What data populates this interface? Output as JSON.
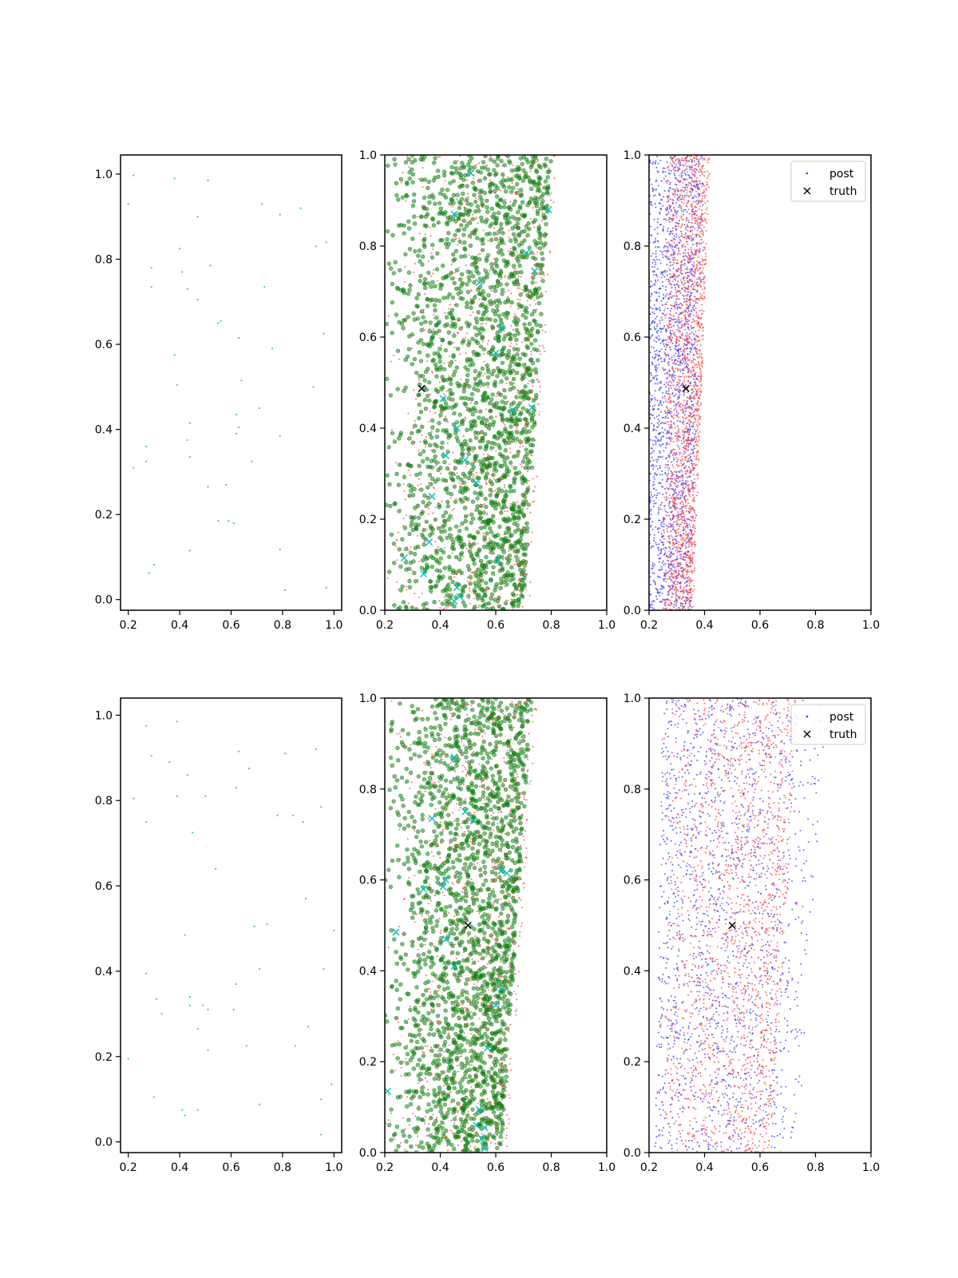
{
  "figure": {
    "background": "#ffffff"
  },
  "colors": {
    "cyan_dot": "#3cc8b0",
    "cyan_x": "#00bfbf",
    "green": "#118811",
    "green_edge": "#0a6a0a",
    "red": "#ff3333",
    "blue": "#3333ff",
    "truth": "#000000"
  },
  "legend": {
    "post": "post",
    "truth": "truth"
  },
  "chart_data": [
    {
      "id": "top-left",
      "type": "scatter",
      "title": "",
      "xlabel": "",
      "ylabel": "",
      "xlim": [
        0.17,
        1.03
      ],
      "ylim": [
        -0.025,
        1.045
      ],
      "xticks": [
        0.2,
        0.4,
        0.6,
        0.8,
        1.0
      ],
      "yticks": [
        0.0,
        0.2,
        0.4,
        0.6,
        0.8,
        1.0
      ],
      "xticklabels": [
        "0.2",
        "0.4",
        "0.6",
        "0.8",
        "1.0"
      ],
      "yticklabels": [
        "0.0",
        "0.2",
        "0.4",
        "0.6",
        "0.8",
        "1.0"
      ],
      "series": [
        {
          "kind": "dots",
          "color_key": "cyan_dot",
          "points": [
            [
              0.22,
              0.997
            ],
            [
              0.38,
              0.99
            ],
            [
              0.51,
              0.985
            ],
            [
              0.2,
              0.93
            ],
            [
              0.72,
              0.93
            ],
            [
              0.47,
              0.9
            ],
            [
              0.79,
              0.905
            ],
            [
              0.87,
              0.92
            ],
            [
              0.4,
              0.825
            ],
            [
              0.93,
              0.83
            ],
            [
              0.97,
              0.84
            ],
            [
              0.29,
              0.78
            ],
            [
              0.41,
              0.77
            ],
            [
              0.52,
              0.785
            ],
            [
              0.29,
              0.735
            ],
            [
              0.43,
              0.73
            ],
            [
              0.73,
              0.735
            ],
            [
              0.47,
              0.705
            ],
            [
              0.55,
              0.65
            ],
            [
              0.56,
              0.655
            ],
            [
              0.96,
              0.625
            ],
            [
              0.63,
              0.615
            ],
            [
              0.38,
              0.575
            ],
            [
              0.76,
              0.59
            ],
            [
              0.39,
              0.505
            ],
            [
              0.64,
              0.515
            ],
            [
              0.92,
              0.5
            ],
            [
              0.71,
              0.45
            ],
            [
              0.62,
              0.435
            ],
            [
              0.44,
              0.415
            ],
            [
              0.63,
              0.405
            ],
            [
              0.62,
              0.39
            ],
            [
              0.79,
              0.385
            ],
            [
              0.43,
              0.375
            ],
            [
              0.27,
              0.36
            ],
            [
              0.44,
              0.335
            ],
            [
              0.27,
              0.325
            ],
            [
              0.68,
              0.325
            ],
            [
              0.22,
              0.31
            ],
            [
              0.58,
              0.27
            ],
            [
              0.51,
              0.265
            ],
            [
              0.55,
              0.185
            ],
            [
              0.59,
              0.185
            ],
            [
              0.61,
              0.18
            ],
            [
              0.44,
              0.115
            ],
            [
              0.79,
              0.118
            ],
            [
              0.3,
              0.082
            ],
            [
              0.28,
              0.062
            ],
            [
              0.81,
              0.022
            ],
            [
              0.97,
              0.028
            ]
          ]
        }
      ]
    },
    {
      "id": "top-middle",
      "type": "scatter",
      "title": "",
      "xlabel": "",
      "ylabel": "",
      "xlim": [
        0.2,
        1.0
      ],
      "ylim": [
        0.0,
        1.0
      ],
      "xticks": [
        0.2,
        0.4,
        0.6,
        0.8,
        1.0
      ],
      "yticks": [
        0.0,
        0.2,
        0.4,
        0.6,
        0.8,
        1.0
      ],
      "xticklabels": [
        "0.2",
        "0.4",
        "0.6",
        "0.8",
        "1.0"
      ],
      "yticklabels": [
        "0.0",
        "0.2",
        "0.4",
        "0.6",
        "0.8",
        "1.0"
      ],
      "cloud": {
        "green": {
          "count": 2000,
          "seed": 11,
          "left_at_y0": 0.2,
          "left_at_y1": 0.2,
          "right_at_y0": 0.7,
          "right_at_y1": 0.8,
          "skew": 0.55
        },
        "red": {
          "count": 900,
          "seed": 12,
          "left_at_y0": 0.2,
          "left_at_y1": 0.2,
          "right_at_y0": 0.72,
          "right_at_y1": 0.82,
          "skew": 0.6
        }
      },
      "series": [
        {
          "kind": "xmarks",
          "color_key": "cyan_x",
          "points": [
            [
              0.45,
              0.87
            ],
            [
              0.79,
              0.88
            ],
            [
              0.54,
              0.72
            ],
            [
              0.71,
              0.785
            ],
            [
              0.74,
              0.745
            ],
            [
              0.41,
              0.465
            ],
            [
              0.46,
              0.4
            ],
            [
              0.42,
              0.34
            ],
            [
              0.49,
              0.33
            ],
            [
              0.53,
              0.28
            ],
            [
              0.37,
              0.25
            ],
            [
              0.6,
              0.565
            ],
            [
              0.66,
              0.44
            ],
            [
              0.73,
              0.445
            ],
            [
              0.36,
              0.15
            ],
            [
              0.27,
              0.115
            ],
            [
              0.34,
              0.08
            ],
            [
              0.46,
              0.05
            ],
            [
              0.45,
              0.02
            ],
            [
              0.47,
              0.03
            ],
            [
              0.61,
              0.11
            ],
            [
              0.62,
              0.62
            ],
            [
              0.51,
              0.96
            ]
          ]
        },
        {
          "kind": "truth",
          "color_key": "truth",
          "points": [
            [
              0.333,
              0.487
            ]
          ]
        }
      ]
    },
    {
      "id": "top-right",
      "type": "scatter",
      "title": "",
      "xlabel": "",
      "ylabel": "",
      "xlim": [
        0.2,
        1.0
      ],
      "ylim": [
        0.0,
        1.0
      ],
      "xticks": [
        0.2,
        0.4,
        0.6,
        0.8,
        1.0
      ],
      "yticks": [
        0.0,
        0.2,
        0.4,
        0.6,
        0.8,
        1.0
      ],
      "xticklabels": [
        "0.2",
        "0.4",
        "0.6",
        "0.8",
        "1.0"
      ],
      "yticklabels": [
        "0.0",
        "0.2",
        "0.4",
        "0.6",
        "0.8",
        "1.0"
      ],
      "legend_position": "upper right",
      "cloud": {
        "blue": {
          "count": 1800,
          "seed": 21,
          "left_at_y0": 0.2,
          "left_at_y1": 0.2,
          "right_at_y0": 0.35,
          "right_at_y1": 0.4,
          "skew": 0.0
        },
        "red": {
          "count": 1800,
          "seed": 22,
          "left_at_y0": 0.25,
          "left_at_y1": 0.26,
          "right_at_y0": 0.36,
          "right_at_y1": 0.42,
          "skew": 0.4
        }
      },
      "series": [
        {
          "kind": "truth",
          "color_key": "truth",
          "points": [
            [
              0.333,
              0.487
            ]
          ]
        }
      ]
    },
    {
      "id": "bottom-left",
      "type": "scatter",
      "title": "",
      "xlabel": "",
      "ylabel": "",
      "xlim": [
        0.17,
        1.03
      ],
      "ylim": [
        -0.025,
        1.04
      ],
      "xticks": [
        0.2,
        0.4,
        0.6,
        0.8,
        1.0
      ],
      "yticks": [
        0.0,
        0.2,
        0.4,
        0.6,
        0.8,
        1.0
      ],
      "xticklabels": [
        "0.2",
        "0.4",
        "0.6",
        "0.8",
        "1.0"
      ],
      "yticklabels": [
        "0.0",
        "0.2",
        "0.4",
        "0.6",
        "0.8",
        "1.0"
      ],
      "series": [
        {
          "kind": "dots",
          "color_key": "cyan_dot",
          "points": [
            [
              0.27,
              0.975
            ],
            [
              0.39,
              0.985
            ],
            [
              0.29,
              0.905
            ],
            [
              0.36,
              0.89
            ],
            [
              0.63,
              0.915
            ],
            [
              0.67,
              0.875
            ],
            [
              0.81,
              0.91
            ],
            [
              0.93,
              0.92
            ],
            [
              0.43,
              0.86
            ],
            [
              0.22,
              0.805
            ],
            [
              0.39,
              0.81
            ],
            [
              0.5,
              0.81
            ],
            [
              0.62,
              0.83
            ],
            [
              0.95,
              0.785
            ],
            [
              0.27,
              0.75
            ],
            [
              0.78,
              0.765
            ],
            [
              0.84,
              0.765
            ],
            [
              0.88,
              0.75
            ],
            [
              0.45,
              0.725
            ],
            [
              0.54,
              0.64
            ],
            [
              0.89,
              0.57
            ],
            [
              0.69,
              0.505
            ],
            [
              0.74,
              0.51
            ],
            [
              1.0,
              0.495
            ],
            [
              0.42,
              0.485
            ],
            [
              0.27,
              0.395
            ],
            [
              0.71,
              0.405
            ],
            [
              0.96,
              0.405
            ],
            [
              0.62,
              0.37
            ],
            [
              0.31,
              0.335
            ],
            [
              0.44,
              0.34
            ],
            [
              0.49,
              0.32
            ],
            [
              0.44,
              0.32
            ],
            [
              0.51,
              0.31
            ],
            [
              0.61,
              0.31
            ],
            [
              0.33,
              0.3
            ],
            [
              0.47,
              0.265
            ],
            [
              0.9,
              0.27
            ],
            [
              0.66,
              0.225
            ],
            [
              0.85,
              0.225
            ],
            [
              0.51,
              0.215
            ],
            [
              0.2,
              0.195
            ],
            [
              0.99,
              0.135
            ],
            [
              0.3,
              0.105
            ],
            [
              0.95,
              0.1
            ],
            [
              0.71,
              0.088
            ],
            [
              0.41,
              0.075
            ],
            [
              0.47,
              0.075
            ],
            [
              0.42,
              0.062
            ],
            [
              0.95,
              0.017
            ]
          ]
        }
      ]
    },
    {
      "id": "bottom-middle",
      "type": "scatter",
      "title": "",
      "xlabel": "",
      "ylabel": "",
      "xlim": [
        0.2,
        1.0
      ],
      "ylim": [
        0.0,
        1.0
      ],
      "xticks": [
        0.2,
        0.4,
        0.6,
        0.8,
        1.0
      ],
      "yticks": [
        0.0,
        0.2,
        0.4,
        0.6,
        0.8,
        1.0
      ],
      "xticklabels": [
        "0.2",
        "0.4",
        "0.6",
        "0.8",
        "1.0"
      ],
      "yticklabels": [
        "0.0",
        "0.2",
        "0.4",
        "0.6",
        "0.8",
        "1.0"
      ],
      "cloud": {
        "green": {
          "count": 2000,
          "seed": 31,
          "left_at_y0": 0.2,
          "left_at_y1": 0.2,
          "right_at_y0": 0.62,
          "right_at_y1": 0.73,
          "skew": 0.6
        },
        "red": {
          "count": 900,
          "seed": 32,
          "left_at_y0": 0.2,
          "left_at_y1": 0.2,
          "right_at_y0": 0.64,
          "right_at_y1": 0.75,
          "skew": 0.65
        }
      },
      "series": [
        {
          "kind": "xmarks",
          "color_key": "cyan_x",
          "points": [
            [
              0.45,
              0.87
            ],
            [
              0.49,
              0.75
            ],
            [
              0.37,
              0.735
            ],
            [
              0.52,
              0.73
            ],
            [
              0.42,
              0.6
            ],
            [
              0.41,
              0.585
            ],
            [
              0.34,
              0.58
            ],
            [
              0.62,
              0.62
            ],
            [
              0.64,
              0.615
            ],
            [
              0.24,
              0.485
            ],
            [
              0.42,
              0.47
            ],
            [
              0.45,
              0.41
            ],
            [
              0.62,
              0.36
            ],
            [
              0.6,
              0.325
            ],
            [
              0.57,
              0.23
            ],
            [
              0.21,
              0.135
            ],
            [
              0.54,
              0.095
            ],
            [
              0.53,
              0.06
            ],
            [
              0.56,
              0.055
            ],
            [
              0.55,
              0.03
            ],
            [
              0.56,
              0.01
            ]
          ]
        },
        {
          "kind": "truth",
          "color_key": "truth",
          "points": [
            [
              0.5,
              0.5
            ]
          ]
        }
      ]
    },
    {
      "id": "bottom-right",
      "type": "scatter",
      "title": "",
      "xlabel": "",
      "ylabel": "",
      "xlim": [
        0.2,
        1.0
      ],
      "ylim": [
        0.0,
        1.0
      ],
      "xticks": [
        0.2,
        0.4,
        0.6,
        0.8,
        1.0
      ],
      "yticks": [
        0.0,
        0.2,
        0.4,
        0.6,
        0.8,
        1.0
      ],
      "xticklabels": [
        "0.2",
        "0.4",
        "0.6",
        "0.8",
        "1.0"
      ],
      "yticklabels": [
        "0.0",
        "0.2",
        "0.4",
        "0.6",
        "0.8",
        "1.0"
      ],
      "legend_position": "upper right",
      "cloud": {
        "blue": {
          "count": 1600,
          "seed": 41,
          "left_at_y0": 0.22,
          "left_at_y1": 0.25,
          "right_at_y0": 0.74,
          "right_at_y1": 0.84,
          "skew": -0.25
        },
        "red": {
          "count": 1700,
          "seed": 42,
          "left_at_y0": 0.22,
          "left_at_y1": 0.25,
          "right_at_y0": 0.64,
          "right_at_y1": 0.74,
          "skew": 0.45
        }
      },
      "series": [
        {
          "kind": "truth",
          "color_key": "truth",
          "points": [
            [
              0.5,
              0.5
            ]
          ]
        }
      ]
    }
  ]
}
